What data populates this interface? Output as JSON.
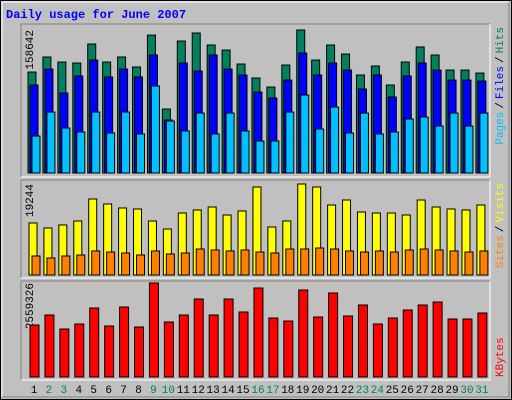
{
  "chart_data": [
    {
      "type": "bar",
      "title": "Daily usage for June 2007",
      "title_color": "#0000ff",
      "legend_separator": "/",
      "ylim": [
        0,
        158642
      ],
      "yticks": [
        158642
      ],
      "series": [
        {
          "name": "Hits",
          "color": "#00805c",
          "values": [
            112000,
            128700,
            123100,
            122000,
            143100,
            123100,
            128700,
            117600,
            153000,
            71000,
            146400,
            155300,
            142000,
            136400,
            120900,
            105400,
            95400,
            119800,
            158642,
            125300,
            142000,
            132000,
            108700,
            118700,
            97600,
            123100,
            139800,
            130900,
            114200,
            114200,
            110900
          ]
        },
        {
          "name": "Files",
          "color": "#0000ff",
          "values": [
            97600,
            115300,
            88700,
            107600,
            125300,
            106500,
            115300,
            106500,
            130900,
            58800,
            122000,
            113100,
            130900,
            115300,
            108700,
            89800,
            83200,
            103100,
            133100,
            108700,
            122000,
            114200,
            93200,
            108700,
            84300,
            107600,
            122000,
            114200,
            103100,
            103100,
            102000
          ]
        },
        {
          "name": "Pages",
          "color": "#00c0ff",
          "values": [
            41000,
            67600,
            49900,
            45500,
            67600,
            44400,
            67600,
            43300,
            96500,
            57700,
            46600,
            66500,
            43300,
            66500,
            46600,
            35500,
            35500,
            67600,
            86500,
            48800,
            73200,
            44400,
            66500,
            43300,
            45500,
            59900,
            62100,
            52100,
            66500,
            52100,
            66500
          ]
        }
      ]
    },
    {
      "type": "bar",
      "legend_separator": "/",
      "ylim": [
        0,
        19244
      ],
      "yticks": [
        19244
      ],
      "series": [
        {
          "name": "Visits",
          "color": "#ffff00",
          "values": [
            11000,
            9940,
            10580,
            11420,
            16070,
            15020,
            14170,
            13960,
            11420,
            9730,
            13110,
            13750,
            14380,
            12690,
            13540,
            18610,
            10150,
            11420,
            19244,
            18610,
            14800,
            15860,
            13320,
            13110,
            13110,
            12690,
            15860,
            14380,
            13960,
            13750,
            14800
          ]
        },
        {
          "name": "Sites",
          "color": "#ff8000",
          "values": [
            4020,
            3600,
            4020,
            4230,
            5080,
            4860,
            4650,
            4230,
            5080,
            4440,
            4650,
            5500,
            5290,
            5080,
            5290,
            4860,
            4650,
            5500,
            5500,
            5710,
            5500,
            5080,
            4860,
            5080,
            4860,
            5290,
            5500,
            5290,
            5080,
            4860,
            5080
          ]
        }
      ]
    },
    {
      "type": "bar",
      "ylim": [
        0,
        2559326
      ],
      "yticks": [
        2559326
      ],
      "categories": [
        "1",
        "2",
        "3",
        "4",
        "5",
        "6",
        "7",
        "8",
        "9",
        "10",
        "11",
        "12",
        "13",
        "14",
        "15",
        "16",
        "17",
        "18",
        "19",
        "20",
        "21",
        "22",
        "23",
        "24",
        "25",
        "26",
        "27",
        "28",
        "29",
        "30",
        "31"
      ],
      "category_colors": [
        "#000000",
        "#00805c",
        "#00805c",
        "#000000",
        "#000000",
        "#000000",
        "#000000",
        "#000000",
        "#00805c",
        "#00805c",
        "#000000",
        "#000000",
        "#000000",
        "#000000",
        "#000000",
        "#00805c",
        "#00805c",
        "#000000",
        "#000000",
        "#000000",
        "#000000",
        "#000000",
        "#00805c",
        "#00805c",
        "#000000",
        "#000000",
        "#000000",
        "#000000",
        "#000000",
        "#00805c",
        "#00805c"
      ],
      "series": [
        {
          "name": "KBytes",
          "color": "#ff0000",
          "values": [
            1415800,
            1688100,
            1306900,
            1443000,
            1878700,
            1388600,
            1905900,
            1361400,
            2559326,
            1497500,
            1688100,
            2123700,
            1688100,
            2123700,
            1769800,
            2423200,
            1606400,
            1524700,
            2368700,
            1633600,
            2287100,
            1660800,
            1960300,
            1443000,
            1606400,
            1824200,
            1960300,
            2042000,
            1579200,
            1579200,
            1742500
          ]
        }
      ]
    }
  ]
}
